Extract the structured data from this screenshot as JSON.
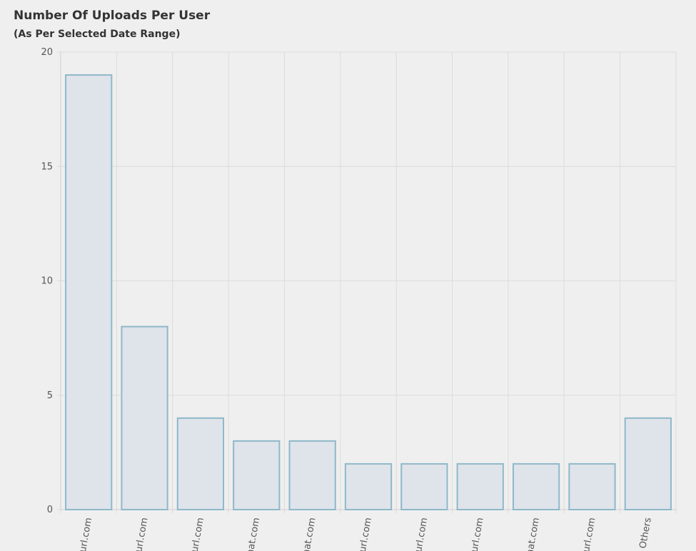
{
  "chart_data": {
    "type": "bar",
    "title": "Number Of Uploads Per User",
    "subtitle": "(As Per Selected Date Range)",
    "categories": [
      "url.com",
      "url.com",
      "url.com",
      "nat.com",
      "nat.com",
      "url.com",
      "url.com",
      "url.com",
      "nat.com",
      "url.com",
      "Others"
    ],
    "values": [
      19,
      8,
      4,
      3,
      3,
      2,
      2,
      2,
      2,
      2,
      4
    ],
    "color": "#dfe3ea",
    "border_color": "#8fb8c9",
    "ylim": [
      0,
      20
    ],
    "yticks": [
      0,
      5,
      10,
      15,
      20
    ],
    "grid": true
  }
}
